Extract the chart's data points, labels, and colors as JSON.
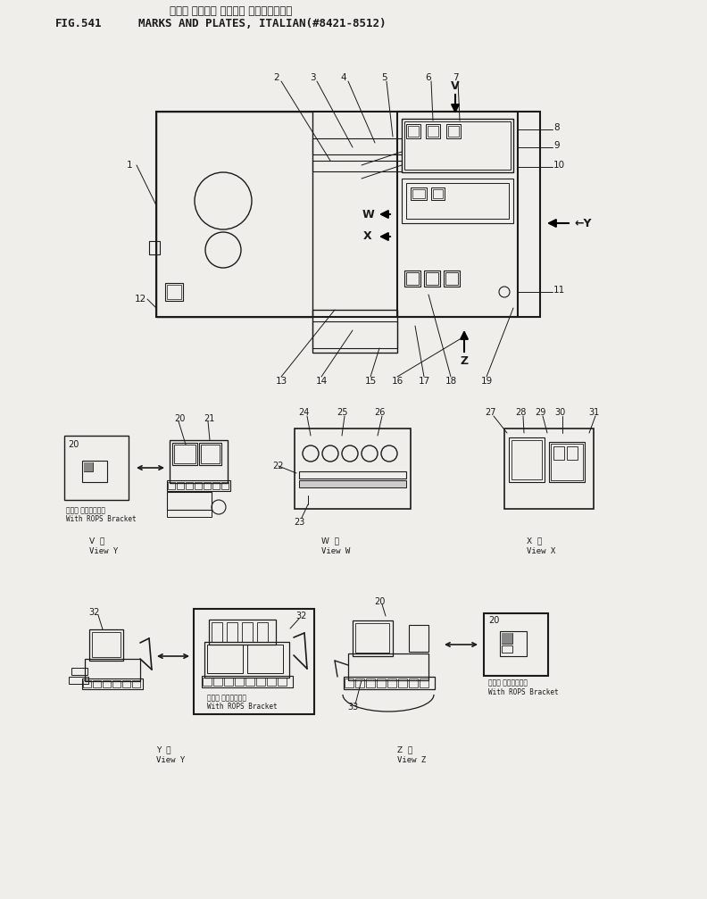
{
  "title_jp": "マーク オヨビテ プレート （イタリアゴ）",
  "title_en_fig": "FIG.541",
  "title_en_main": "MARKS AND PLATES, ITALIAN(#8421-8512)",
  "bg_color": "#f0eeea",
  "line_color": "#1a1a1a",
  "fig_width": 7.92,
  "fig_height": 10.07,
  "dpi": 100
}
